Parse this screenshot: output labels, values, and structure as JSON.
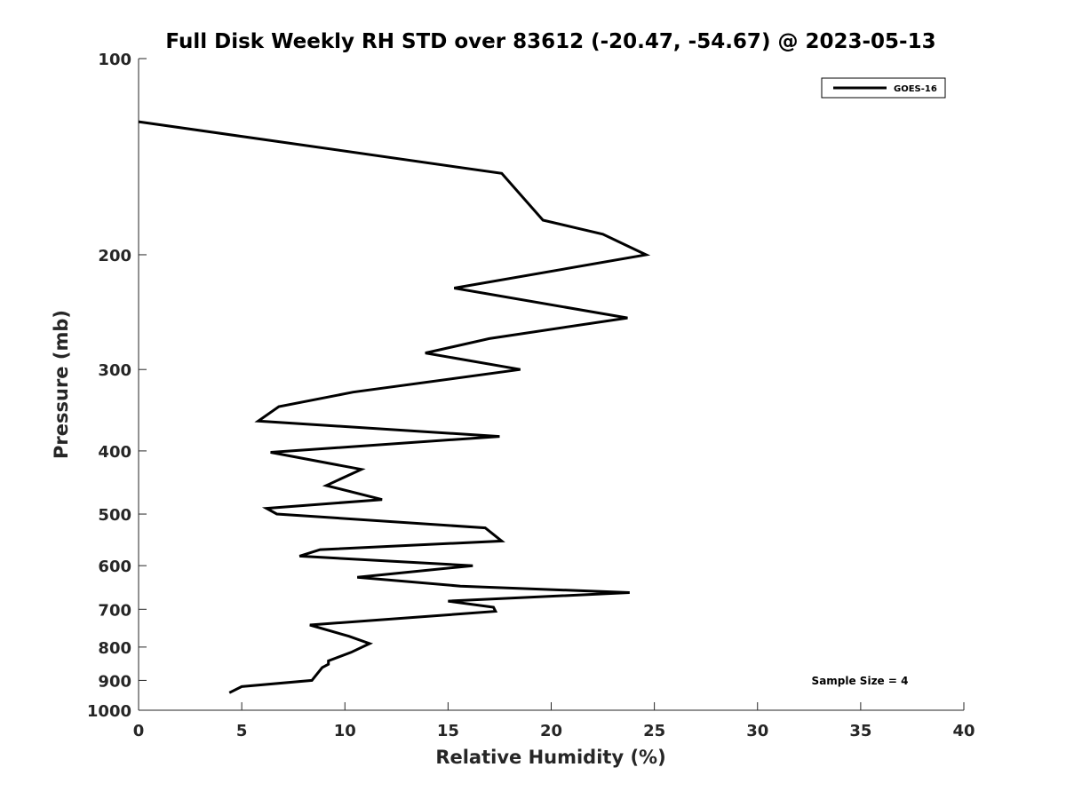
{
  "chart_data": {
    "type": "line",
    "title": "Full Disk Weekly RH STD over 83612 (-20.47, -54.67) @ 2023-05-13",
    "xlabel": "Relative Humidity (%)",
    "ylabel": "Pressure (mb)",
    "xlim": [
      0,
      40
    ],
    "ylim": [
      100,
      1000
    ],
    "yscale": "log",
    "y_reversed": true,
    "grid": false,
    "x_ticks": [
      0,
      5,
      10,
      15,
      20,
      25,
      30,
      35,
      40
    ],
    "y_ticks": [
      100,
      200,
      300,
      400,
      500,
      600,
      700,
      800,
      900,
      1000
    ],
    "legend": {
      "location": "top-right",
      "entries": [
        "GOES-16"
      ]
    },
    "annotation": "Sample Size = 4",
    "series": [
      {
        "name": "GOES-16",
        "color": "#000000",
        "points": [
          [
            0,
            125
          ],
          [
            17.6,
            150
          ],
          [
            19.6,
            177
          ],
          [
            22.5,
            186
          ],
          [
            24.6,
            200
          ],
          [
            15.3,
            225
          ],
          [
            23.7,
            250
          ],
          [
            17.0,
            269
          ],
          [
            13.9,
            283
          ],
          [
            18.5,
            300
          ],
          [
            10.4,
            325
          ],
          [
            6.8,
            342
          ],
          [
            5.8,
            360
          ],
          [
            17.5,
            380
          ],
          [
            6.4,
            402
          ],
          [
            10.8,
            427
          ],
          [
            9.1,
            452
          ],
          [
            11.8,
            475
          ],
          [
            6.2,
            490
          ],
          [
            6.7,
            500
          ],
          [
            16.8,
            525
          ],
          [
            17.6,
            550
          ],
          [
            8.8,
            567
          ],
          [
            7.8,
            580
          ],
          [
            16.2,
            600
          ],
          [
            10.6,
            625
          ],
          [
            15.6,
            645
          ],
          [
            23.8,
            660
          ],
          [
            15.0,
            680
          ],
          [
            17.2,
            695
          ],
          [
            17.3,
            705
          ],
          [
            8.3,
            740
          ],
          [
            10.2,
            770
          ],
          [
            11.2,
            790
          ],
          [
            10.3,
            815
          ],
          [
            9.2,
            840
          ],
          [
            9.2,
            850
          ],
          [
            8.9,
            860
          ],
          [
            8.4,
            900
          ],
          [
            5.0,
            920
          ],
          [
            4.4,
            940
          ]
        ]
      }
    ]
  }
}
